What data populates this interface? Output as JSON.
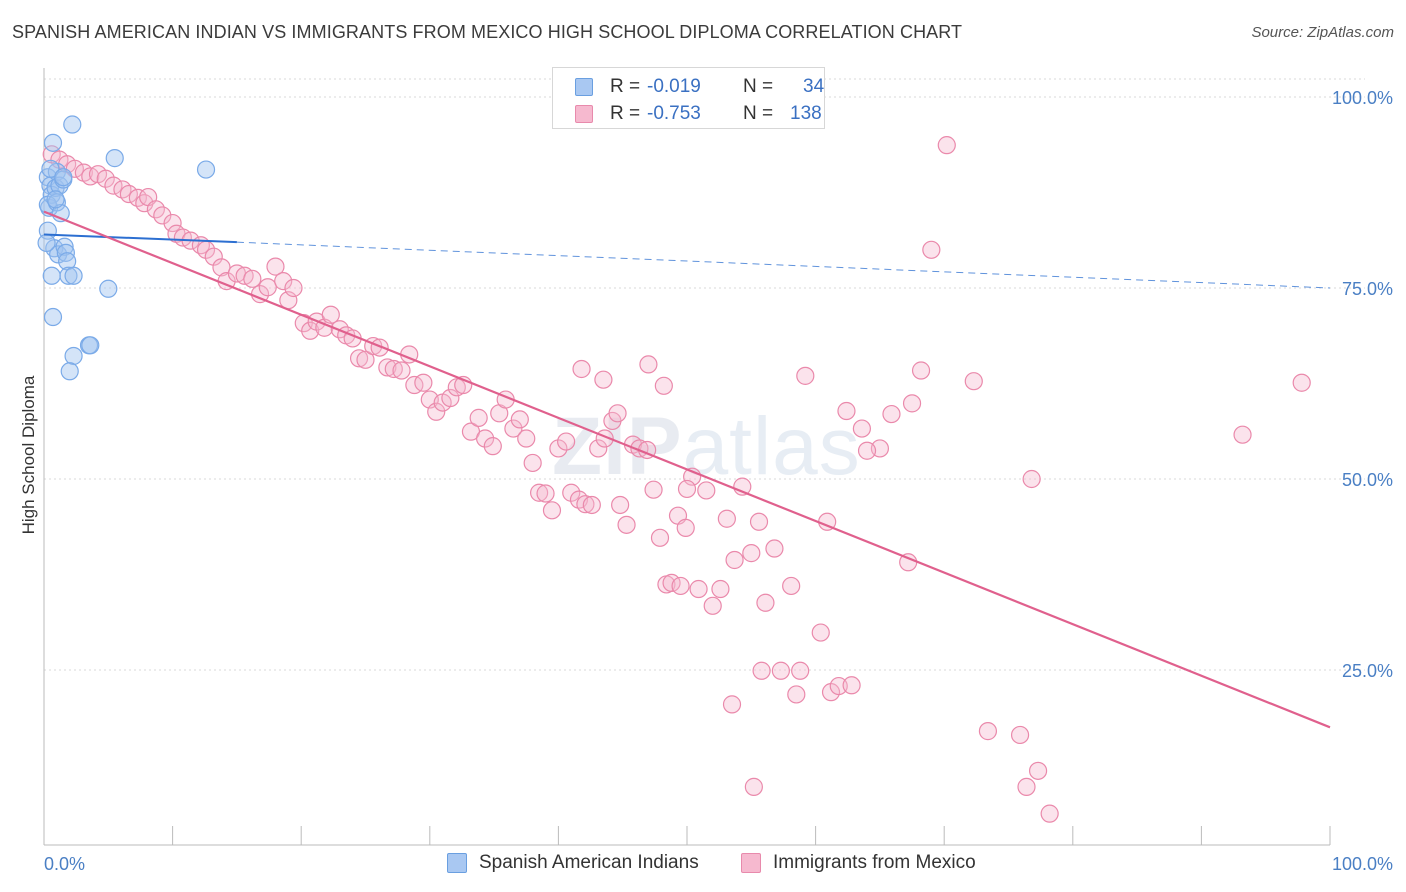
{
  "title": "SPANISH AMERICAN INDIAN VS IMMIGRANTS FROM MEXICO HIGH SCHOOL DIPLOMA CORRELATION CHART",
  "source": "Source: ZipAtlas.com",
  "watermark": {
    "zip": "ZIP",
    "atlas": "atlas"
  },
  "legend": {
    "rows": [
      {
        "r_label": "R =",
        "r_value": "-0.019",
        "n_label": "N =",
        "n_value": "34",
        "color": "#a9c8f2",
        "border": "#6a9fe0"
      },
      {
        "r_label": "R =",
        "r_value": "-0.753",
        "n_label": "N =",
        "n_value": "138",
        "color": "#f6b9cf",
        "border": "#e88aac"
      }
    ]
  },
  "bottom_legend": [
    {
      "label": "Spanish American Indians",
      "color": "#a9c8f2",
      "border": "#6a9fe0"
    },
    {
      "label": "Immigrants from Mexico",
      "color": "#f6b9cf",
      "border": "#e88aac"
    }
  ],
  "chart_data": {
    "type": "scatter",
    "title": "SPANISH AMERICAN INDIAN VS IMMIGRANTS FROM MEXICO HIGH SCHOOL DIPLOMA CORRELATION CHART",
    "xlabel": "",
    "ylabel": "High School Diploma",
    "xlim": [
      0,
      100
    ],
    "ylim": [
      0,
      102
    ],
    "x_tick_labels": [
      "0.0%",
      "100.0%"
    ],
    "y_ticks": [
      25,
      50,
      75,
      100
    ],
    "y_tick_labels": [
      "25.0%",
      "50.0%",
      "75.0%",
      "100.0%"
    ],
    "grid": true,
    "series": [
      {
        "name": "Spanish American Indians",
        "color": "#7aaae8",
        "fill": "rgba(160,195,240,0.45)",
        "trend": {
          "x0": 0,
          "y0": 82.0,
          "x1": 15,
          "y1": 81.0,
          "dashed_to": 100,
          "dashed_y": 75.0,
          "color": "#2c6fd1"
        },
        "points": [
          [
            0.3,
            89.5
          ],
          [
            0.5,
            88.4
          ],
          [
            0.7,
            94
          ],
          [
            0.4,
            85.5
          ],
          [
            0.6,
            87.2
          ],
          [
            0.9,
            88.1
          ],
          [
            1.0,
            90.2
          ],
          [
            1.2,
            88.4
          ],
          [
            1.5,
            89.2
          ],
          [
            2.2,
            96.4
          ],
          [
            5.5,
            92
          ],
          [
            12.6,
            90.5
          ],
          [
            0.3,
            82.5
          ],
          [
            0.8,
            80.2
          ],
          [
            1.1,
            79.4
          ],
          [
            1.6,
            80.4
          ],
          [
            1.7,
            79.6
          ],
          [
            1.8,
            78.5
          ],
          [
            1.9,
            76.6
          ],
          [
            2.3,
            76.6
          ],
          [
            0.6,
            76.6
          ],
          [
            5.0,
            74.9
          ],
          [
            0.7,
            71.2
          ],
          [
            3.5,
            67.5
          ],
          [
            3.6,
            67.5
          ],
          [
            2.3,
            66.1
          ],
          [
            2.0,
            64.1
          ],
          [
            0.3,
            85.9
          ],
          [
            1.0,
            86.2
          ],
          [
            0.2,
            80.9
          ],
          [
            1.3,
            84.8
          ],
          [
            0.5,
            90.6
          ],
          [
            1.5,
            89.5
          ],
          [
            0.9,
            86.6
          ]
        ]
      },
      {
        "name": "Immigrants from Mexico",
        "color": "#ea89ab",
        "fill": "rgba(246,185,207,0.40)",
        "trend": {
          "x0": 0,
          "y0": 85.0,
          "x1": 100,
          "y1": 17.5,
          "color": "#e0608d"
        },
        "points": [
          [
            0.6,
            92.5
          ],
          [
            1.2,
            91.8
          ],
          [
            1.8,
            91.2
          ],
          [
            2.4,
            90.6
          ],
          [
            3.1,
            90.1
          ],
          [
            3.6,
            89.6
          ],
          [
            4.2,
            89.9
          ],
          [
            4.8,
            89.3
          ],
          [
            5.4,
            88.4
          ],
          [
            6.1,
            87.9
          ],
          [
            6.6,
            87.3
          ],
          [
            7.3,
            86.8
          ],
          [
            7.8,
            86.1
          ],
          [
            8.1,
            86.9
          ],
          [
            8.7,
            85.3
          ],
          [
            9.2,
            84.5
          ],
          [
            10.0,
            83.5
          ],
          [
            10.3,
            82.1
          ],
          [
            10.8,
            81.6
          ],
          [
            11.4,
            81.2
          ],
          [
            12.2,
            80.6
          ],
          [
            12.6,
            80.0
          ],
          [
            13.2,
            79.1
          ],
          [
            13.8,
            77.7
          ],
          [
            14.2,
            75.9
          ],
          [
            15.0,
            76.9
          ],
          [
            15.6,
            76.6
          ],
          [
            16.2,
            76.2
          ],
          [
            16.8,
            74.2
          ],
          [
            17.4,
            75.1
          ],
          [
            18.0,
            77.8
          ],
          [
            18.6,
            75.9
          ],
          [
            19.0,
            73.4
          ],
          [
            19.4,
            75.0
          ],
          [
            20.2,
            70.4
          ],
          [
            20.7,
            69.4
          ],
          [
            21.2,
            70.6
          ],
          [
            21.8,
            69.8
          ],
          [
            22.3,
            71.5
          ],
          [
            23.0,
            69.6
          ],
          [
            23.5,
            68.8
          ],
          [
            24.0,
            68.4
          ],
          [
            24.5,
            65.8
          ],
          [
            25.0,
            65.6
          ],
          [
            25.6,
            67.4
          ],
          [
            26.1,
            67.2
          ],
          [
            26.7,
            64.6
          ],
          [
            27.2,
            64.4
          ],
          [
            27.8,
            64.2
          ],
          [
            28.4,
            66.3
          ],
          [
            28.8,
            62.3
          ],
          [
            29.5,
            62.6
          ],
          [
            30.0,
            60.4
          ],
          [
            30.5,
            58.8
          ],
          [
            31.0,
            60.0
          ],
          [
            31.6,
            60.6
          ],
          [
            32.1,
            62.0
          ],
          [
            32.6,
            62.3
          ],
          [
            33.2,
            56.2
          ],
          [
            33.8,
            58.0
          ],
          [
            34.3,
            55.3
          ],
          [
            34.9,
            54.3
          ],
          [
            35.4,
            58.6
          ],
          [
            35.9,
            60.4
          ],
          [
            36.5,
            56.6
          ],
          [
            37.0,
            57.8
          ],
          [
            37.5,
            55.3
          ],
          [
            38.0,
            52.1
          ],
          [
            38.5,
            48.2
          ],
          [
            39.0,
            48.1
          ],
          [
            39.5,
            45.9
          ],
          [
            40.0,
            54.0
          ],
          [
            40.6,
            54.9
          ],
          [
            41.0,
            48.2
          ],
          [
            41.6,
            47.3
          ],
          [
            42.1,
            46.7
          ],
          [
            42.6,
            46.6
          ],
          [
            43.1,
            54.0
          ],
          [
            43.6,
            55.3
          ],
          [
            44.2,
            57.6
          ],
          [
            44.8,
            46.6
          ],
          [
            45.3,
            44.0
          ],
          [
            45.8,
            54.5
          ],
          [
            46.3,
            54.0
          ],
          [
            46.9,
            53.8
          ],
          [
            47.4,
            48.6
          ],
          [
            47.9,
            42.3
          ],
          [
            48.4,
            36.2
          ],
          [
            48.8,
            36.4
          ],
          [
            49.3,
            45.2
          ],
          [
            49.9,
            43.6
          ],
          [
            50.4,
            50.3
          ],
          [
            50.9,
            35.6
          ],
          [
            51.5,
            48.5
          ],
          [
            52.0,
            33.4
          ],
          [
            52.6,
            35.6
          ],
          [
            53.1,
            44.8
          ],
          [
            53.7,
            39.4
          ],
          [
            54.3,
            49.0
          ],
          [
            55.0,
            40.3
          ],
          [
            55.6,
            44.4
          ],
          [
            56.1,
            33.8
          ],
          [
            56.8,
            40.9
          ],
          [
            57.3,
            24.9
          ],
          [
            58.1,
            36.0
          ],
          [
            58.8,
            24.9
          ],
          [
            59.2,
            63.5
          ],
          [
            60.4,
            29.9
          ],
          [
            61.2,
            22.1
          ],
          [
            61.8,
            22.9
          ],
          [
            62.4,
            58.9
          ],
          [
            62.8,
            23.0
          ],
          [
            65.0,
            54.0
          ],
          [
            67.2,
            39.1
          ],
          [
            68.2,
            64.2
          ],
          [
            69.0,
            80.0
          ],
          [
            70.2,
            93.7
          ],
          [
            73.4,
            17.0
          ],
          [
            75.9,
            16.5
          ],
          [
            76.8,
            50.0
          ],
          [
            77.3,
            11.8
          ],
          [
            78.2,
            6.2
          ],
          [
            41.8,
            64.4
          ],
          [
            43.5,
            63.0
          ],
          [
            44.6,
            58.6
          ],
          [
            47.0,
            65.0
          ],
          [
            48.2,
            62.2
          ],
          [
            49.5,
            36.0
          ],
          [
            50.0,
            48.7
          ],
          [
            53.5,
            20.5
          ],
          [
            55.2,
            9.7
          ],
          [
            55.8,
            24.9
          ],
          [
            58.5,
            21.8
          ],
          [
            60.9,
            44.4
          ],
          [
            63.6,
            56.6
          ],
          [
            64.0,
            53.7
          ],
          [
            65.9,
            58.5
          ],
          [
            67.5,
            59.9
          ],
          [
            72.3,
            62.8
          ],
          [
            97.8,
            62.6
          ],
          [
            93.2,
            55.8
          ],
          [
            76.4,
            9.7
          ]
        ]
      }
    ]
  },
  "axis_labels": {
    "x_left": "0.0%",
    "x_right": "100.0%",
    "y_100": "100.0%",
    "y_75": "75.0%",
    "y_50": "50.0%",
    "y_25": "25.0%"
  }
}
